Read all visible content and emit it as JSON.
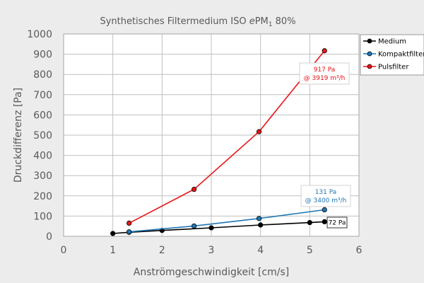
{
  "chart_data": {
    "type": "line",
    "title_prefix": "Synthetisches Filtermedium ISO ",
    "title_italic": "e",
    "title_pm": "PM",
    "title_sub": "1",
    "title_suffix": " 80%",
    "xlabel": "Anströmgeschwindigkeit [cm/s]",
    "ylabel": "Druckdifferenz [Pa]",
    "xlim": [
      0,
      6
    ],
    "ylim": [
      0,
      1000
    ],
    "xticks": [
      0,
      1,
      2,
      3,
      4,
      5,
      6
    ],
    "yticks": [
      0,
      100,
      200,
      300,
      400,
      500,
      600,
      700,
      800,
      900,
      1000
    ],
    "grid": true,
    "legend_position": "right",
    "series": [
      {
        "name": "Medium",
        "color": "#000000",
        "x": [
          1.0,
          1.33,
          2.0,
          3.0,
          4.0,
          5.0,
          5.3
        ],
        "y": [
          14,
          20,
          29,
          42,
          56,
          68,
          72
        ]
      },
      {
        "name": "Kompaktfilter",
        "color": "#1f77b4",
        "x": [
          1.33,
          2.65,
          3.97,
          5.3
        ],
        "y": [
          22,
          51,
          88,
          131
        ]
      },
      {
        "name": "Pulsfilter",
        "color": "#e8151b",
        "x": [
          1.33,
          2.65,
          3.97,
          5.3
        ],
        "y": [
          65,
          232,
          517,
          917
        ]
      }
    ],
    "annotations": [
      {
        "series": "Pulsfilter",
        "lines": [
          "917 Pa",
          "@ 3919 m³/h"
        ],
        "color": "#e8151b"
      },
      {
        "series": "Kompaktfilter",
        "lines": [
          "131 Pa",
          "@ 3400 m³/h"
        ],
        "color": "#1f77b4"
      },
      {
        "series": "Medium",
        "lines": [
          "72 Pa"
        ],
        "color": "#000000"
      }
    ]
  }
}
